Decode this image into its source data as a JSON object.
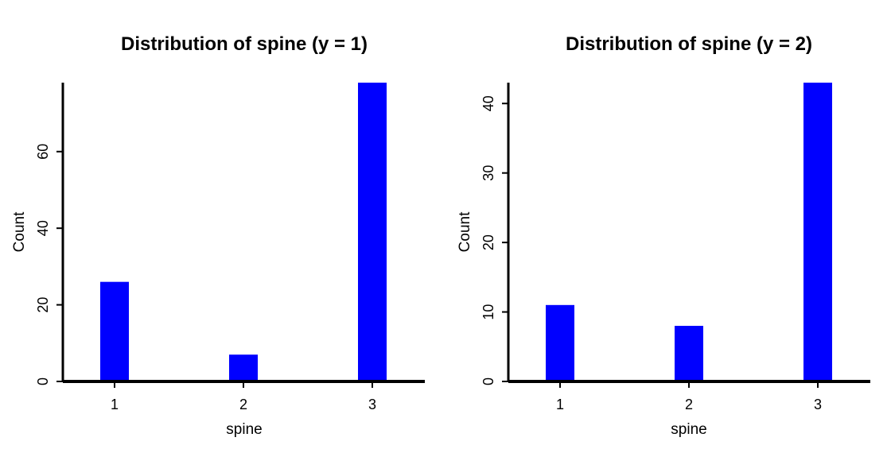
{
  "chart_data": [
    {
      "type": "bar",
      "title": "Distribution of spine (y = 1)",
      "xlabel": "spine",
      "ylabel": "Count",
      "categories": [
        "1",
        "2",
        "3"
      ],
      "values": [
        26,
        7,
        78
      ],
      "yticks": [
        0,
        20,
        40,
        60
      ],
      "ylim": [
        0,
        78
      ],
      "bar_color": "#0000ff",
      "grid": false,
      "legend": "none"
    },
    {
      "type": "bar",
      "title": "Distribution of spine (y = 2)",
      "xlabel": "spine",
      "ylabel": "Count",
      "categories": [
        "1",
        "2",
        "3"
      ],
      "values": [
        11,
        8,
        43
      ],
      "yticks": [
        0,
        10,
        20,
        30,
        40
      ],
      "ylim": [
        0,
        43
      ],
      "bar_color": "#0000ff",
      "grid": false,
      "legend": "none"
    }
  ]
}
